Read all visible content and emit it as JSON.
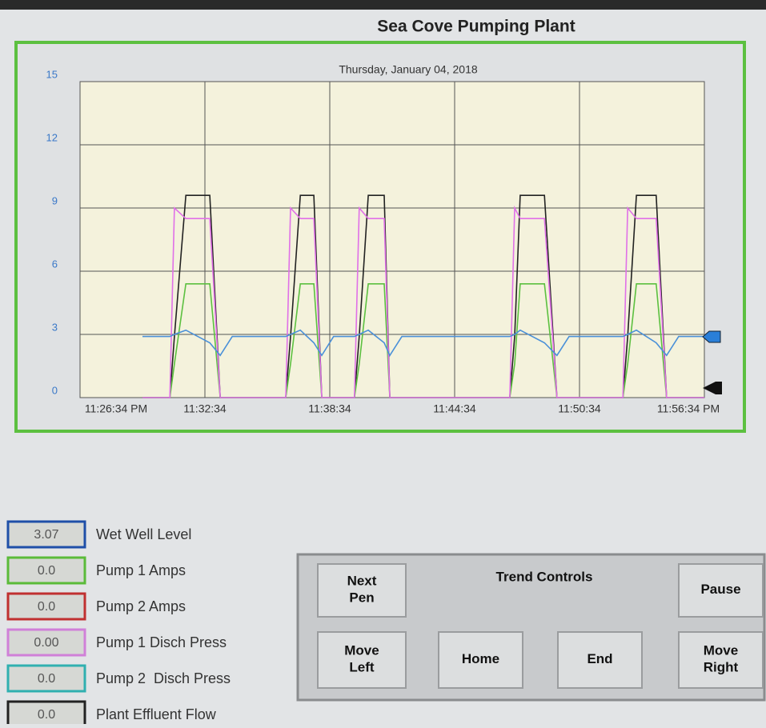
{
  "header": {
    "title": "Sea Cove Pumping Plant"
  },
  "chart_data": {
    "type": "line",
    "subtitle": "Thursday, January 04, 2018",
    "x": [
      "23:29:34",
      "23:30:53",
      "23:31:06",
      "23:31:39",
      "23:32:48",
      "23:33:18",
      "23:33:53",
      "23:36:27",
      "23:36:41",
      "23:37:09",
      "23:37:48",
      "23:38:11",
      "23:38:45",
      "23:39:45",
      "23:39:59",
      "23:40:25",
      "23:41:11",
      "23:41:27",
      "23:42:02",
      "23:47:13",
      "23:47:27",
      "23:47:43",
      "23:48:53",
      "23:49:29",
      "23:50:04",
      "23:52:39",
      "23:52:53",
      "23:53:18",
      "23:54:15",
      "23:54:45",
      "23:55:20",
      "23:56:34"
    ],
    "series": [
      {
        "color": "#222222",
        "values": [
          0,
          0,
          2.9,
          9.6,
          9.6,
          0,
          0,
          0,
          2.9,
          9.6,
          9.6,
          0,
          0,
          0,
          2.9,
          9.6,
          9.6,
          0,
          0,
          0,
          2.9,
          9.6,
          9.6,
          0,
          0,
          0,
          2.9,
          9.6,
          9.6,
          0,
          0,
          0
        ]
      },
      {
        "color": "#5cc040",
        "values": [
          0,
          0,
          1.6,
          5.4,
          5.4,
          0,
          0,
          0,
          1.6,
          5.4,
          5.4,
          0,
          0,
          0,
          1.6,
          5.4,
          5.4,
          0,
          0,
          0,
          1.6,
          5.4,
          5.4,
          0,
          0,
          0,
          1.6,
          5.4,
          5.4,
          0,
          0,
          0
        ]
      },
      {
        "color": "#e070e8",
        "values": [
          0,
          0,
          9,
          8.5,
          8.5,
          0,
          0,
          0,
          9,
          8.5,
          8.5,
          0,
          0,
          0,
          9,
          8.5,
          8.5,
          0,
          0,
          0,
          9,
          8.5,
          8.5,
          0,
          0,
          0,
          9,
          8.5,
          8.5,
          0,
          0,
          0
        ]
      },
      {
        "color": "#4a90d8",
        "values": [
          2.9,
          2.9,
          3.0,
          3.2,
          2.6,
          2.0,
          2.9,
          2.9,
          3.0,
          3.2,
          2.6,
          2.0,
          2.9,
          2.9,
          3.0,
          3.2,
          2.6,
          2.0,
          2.9,
          2.9,
          3.0,
          3.2,
          2.6,
          2.0,
          2.9,
          2.9,
          3.0,
          3.2,
          2.6,
          2.0,
          2.9,
          2.9
        ]
      }
    ],
    "xlim": [
      "23:26:34",
      "23:56:34"
    ],
    "xticks": [
      {
        "value": "23:26:34",
        "label": "11:26:34 PM"
      },
      {
        "value": "23:32:34",
        "label": "11:32:34"
      },
      {
        "value": "23:38:34",
        "label": "11:38:34"
      },
      {
        "value": "23:44:34",
        "label": "11:44:34"
      },
      {
        "value": "23:50:34",
        "label": "11:50:34"
      },
      {
        "value": "23:56:34",
        "label": "11:56:34 PM"
      }
    ],
    "ylim": [
      0,
      15
    ],
    "yticks": [
      0,
      3,
      6,
      9,
      12,
      15
    ],
    "grid": true
  },
  "pens": [
    {
      "value": "3.07",
      "label": "Wet Well Level",
      "color": "#1f4fa8"
    },
    {
      "value": "0.0",
      "label": "Pump 1 Amps",
      "color": "#5bbb3a"
    },
    {
      "value": "0.0",
      "label": "Pump 2 Amps",
      "color": "#c03030"
    },
    {
      "value": "0.00",
      "label": "Pump 1 Disch Press",
      "color": "#d080d8"
    },
    {
      "value": "0.0",
      "label": "Pump 2  Disch Press",
      "color": "#30b0b0"
    },
    {
      "value": "0.0",
      "label": "Plant Effluent Flow",
      "color": "#222222"
    }
  ],
  "controls": {
    "title": "Trend Controls",
    "buttons": [
      "Next\nPen",
      "Pause",
      "Move\nLeft",
      "Home",
      "End",
      "Move\nRight"
    ]
  }
}
